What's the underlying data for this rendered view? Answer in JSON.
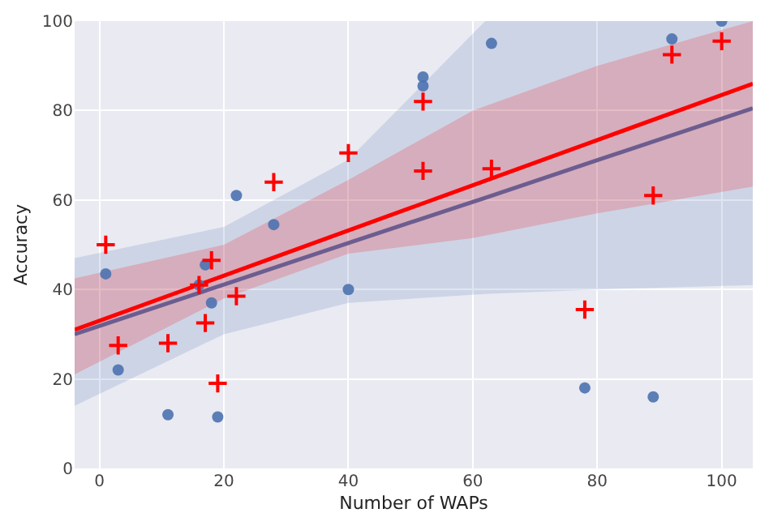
{
  "chart_data": {
    "type": "scatter",
    "xlabel": "Number of WAPs",
    "ylabel": "Accuracy",
    "xlim": [
      -4,
      105
    ],
    "ylim": [
      0,
      100
    ],
    "xticks": [
      0,
      20,
      40,
      60,
      80,
      100
    ],
    "yticks": [
      0,
      20,
      40,
      60,
      80,
      100
    ],
    "grid": true,
    "series": [
      {
        "type": "line",
        "color": "#4c72b0",
        "marker": "none",
        "x": [
          -4,
          20,
          40,
          62,
          80,
          105
        ],
        "values": [
          30,
          41.1,
          50.4,
          60.5,
          68.9,
          80.5
        ],
        "lower": [
          14,
          30,
          37,
          39,
          40,
          41
        ],
        "upper": [
          47,
          54,
          69,
          100,
          100,
          100
        ]
      },
      {
        "type": "line",
        "color": "#ff0000",
        "marker": "none",
        "x": [
          -4,
          20,
          40,
          60,
          80,
          105
        ],
        "values": [
          31,
          43.1,
          53.2,
          63.3,
          73.4,
          86
        ],
        "lower": [
          21,
          38,
          48,
          51.5,
          57,
          63
        ],
        "upper": [
          42.5,
          50,
          64.5,
          80,
          90,
          100
        ]
      },
      {
        "color": "#4c72b0",
        "marker": "circle",
        "x": [
          1,
          3,
          11,
          16,
          17,
          18,
          19,
          22,
          28,
          40,
          52,
          52,
          63,
          78,
          89,
          92,
          100
        ],
        "values": [
          43.5,
          22,
          12,
          41,
          45.5,
          37,
          11.5,
          61,
          54.5,
          40,
          87.5,
          85.5,
          95,
          18,
          16,
          96,
          100
        ]
      },
      {
        "color": "#ff0000",
        "marker": "cross",
        "x": [
          1,
          3,
          11,
          16,
          17,
          18,
          19,
          22,
          28,
          40,
          52,
          52,
          63,
          78,
          89,
          92,
          100
        ],
        "values": [
          50,
          27.5,
          28,
          41,
          32.5,
          46.5,
          19,
          38.5,
          64,
          70.5,
          82,
          66.5,
          67,
          35.5,
          61,
          92.5,
          95.5
        ]
      }
    ]
  }
}
